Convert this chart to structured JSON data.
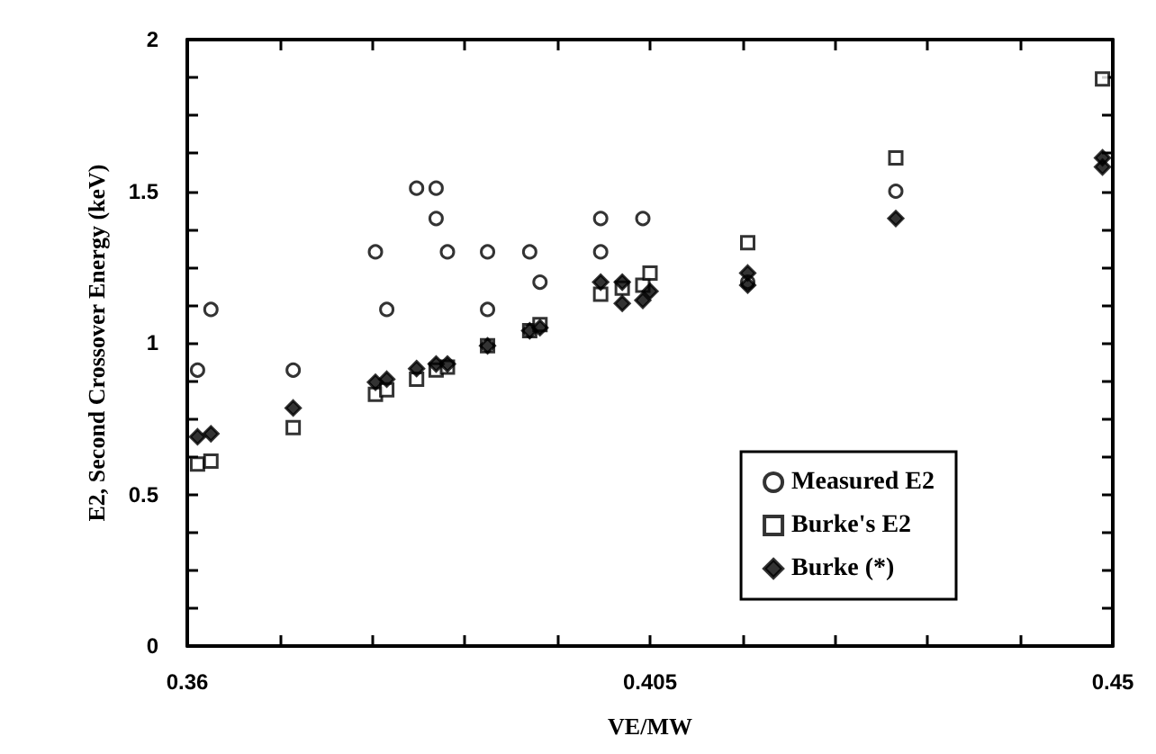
{
  "chart_data": {
    "type": "scatter",
    "xlabel": "VE/MW",
    "ylabel": "E2, Second Crossover Energy (keV)",
    "xlim": [
      0.36,
      0.45
    ],
    "ylim": [
      0,
      2
    ],
    "xticks": [
      0.36,
      {
        "value": 0.369,
        "label": null
      },
      {
        "value": 0.378,
        "label": null
      },
      {
        "value": 0.387,
        "label": null
      },
      {
        "value": 0.396,
        "label": null
      },
      0.405,
      {
        "value": 0.414,
        "label": null
      },
      {
        "value": 0.423,
        "label": null
      },
      {
        "value": 0.432,
        "label": null
      },
      {
        "value": 0.441,
        "label": null
      },
      0.45
    ],
    "yticks": [
      0,
      {
        "value": 0.125,
        "label": null
      },
      {
        "value": 0.25,
        "label": null
      },
      {
        "value": 0.375,
        "label": null
      },
      0.5,
      {
        "value": 0.625,
        "label": null
      },
      {
        "value": 0.75,
        "label": null
      },
      {
        "value": 0.875,
        "label": null
      },
      1,
      {
        "value": 1.125,
        "label": null
      },
      {
        "value": 1.25,
        "label": null
      },
      {
        "value": 1.375,
        "label": null
      },
      1.5,
      {
        "value": 1.625,
        "label": null
      },
      {
        "value": 1.75,
        "label": null
      },
      {
        "value": 1.875,
        "label": null
      },
      2
    ],
    "grid": false,
    "legend": "bottom right",
    "series": [
      {
        "name": "Measured E2",
        "color": "#000000",
        "marker": "circle",
        "x": [
          0.361,
          0.3623,
          0.3703,
          0.3783,
          0.3794,
          0.3823,
          0.3842,
          0.3842,
          0.3853,
          0.3892,
          0.3892,
          0.3933,
          0.3943,
          0.4002,
          0.4002,
          0.4043,
          0.4145,
          0.4289
        ],
        "values": [
          0.91,
          1.11,
          0.91,
          1.3,
          1.11,
          1.51,
          1.51,
          1.41,
          1.3,
          1.3,
          1.11,
          1.3,
          1.2,
          1.41,
          1.3,
          1.41,
          1.2,
          1.5
        ]
      },
      {
        "name": "Burke's E2",
        "color": "#000000",
        "marker": "square",
        "x": [
          0.361,
          0.3623,
          0.3703,
          0.3783,
          0.3794,
          0.3823,
          0.3842,
          0.3853,
          0.3892,
          0.3933,
          0.3943,
          0.4002,
          0.4023,
          0.4043,
          0.405,
          0.4145,
          0.4289,
          0.449
        ],
        "values": [
          0.6,
          0.61,
          0.72,
          0.83,
          0.845,
          0.88,
          0.91,
          0.92,
          0.99,
          1.04,
          1.06,
          1.16,
          1.18,
          1.19,
          1.23,
          1.33,
          1.61,
          1.87
        ]
      },
      {
        "name": "Burke (*)",
        "color": "#000000",
        "marker": "diamond",
        "x": [
          0.361,
          0.3623,
          0.3703,
          0.3783,
          0.3794,
          0.3823,
          0.3842,
          0.3853,
          0.3892,
          0.3933,
          0.3943,
          0.4002,
          0.4023,
          0.4023,
          0.4043,
          0.405,
          0.4145,
          0.4145,
          0.4289,
          0.449,
          0.449
        ],
        "values": [
          0.69,
          0.7,
          0.785,
          0.87,
          0.88,
          0.915,
          0.93,
          0.93,
          0.99,
          1.04,
          1.05,
          1.2,
          1.2,
          1.13,
          1.14,
          1.17,
          1.23,
          1.19,
          1.41,
          1.58,
          1.61
        ]
      }
    ]
  }
}
